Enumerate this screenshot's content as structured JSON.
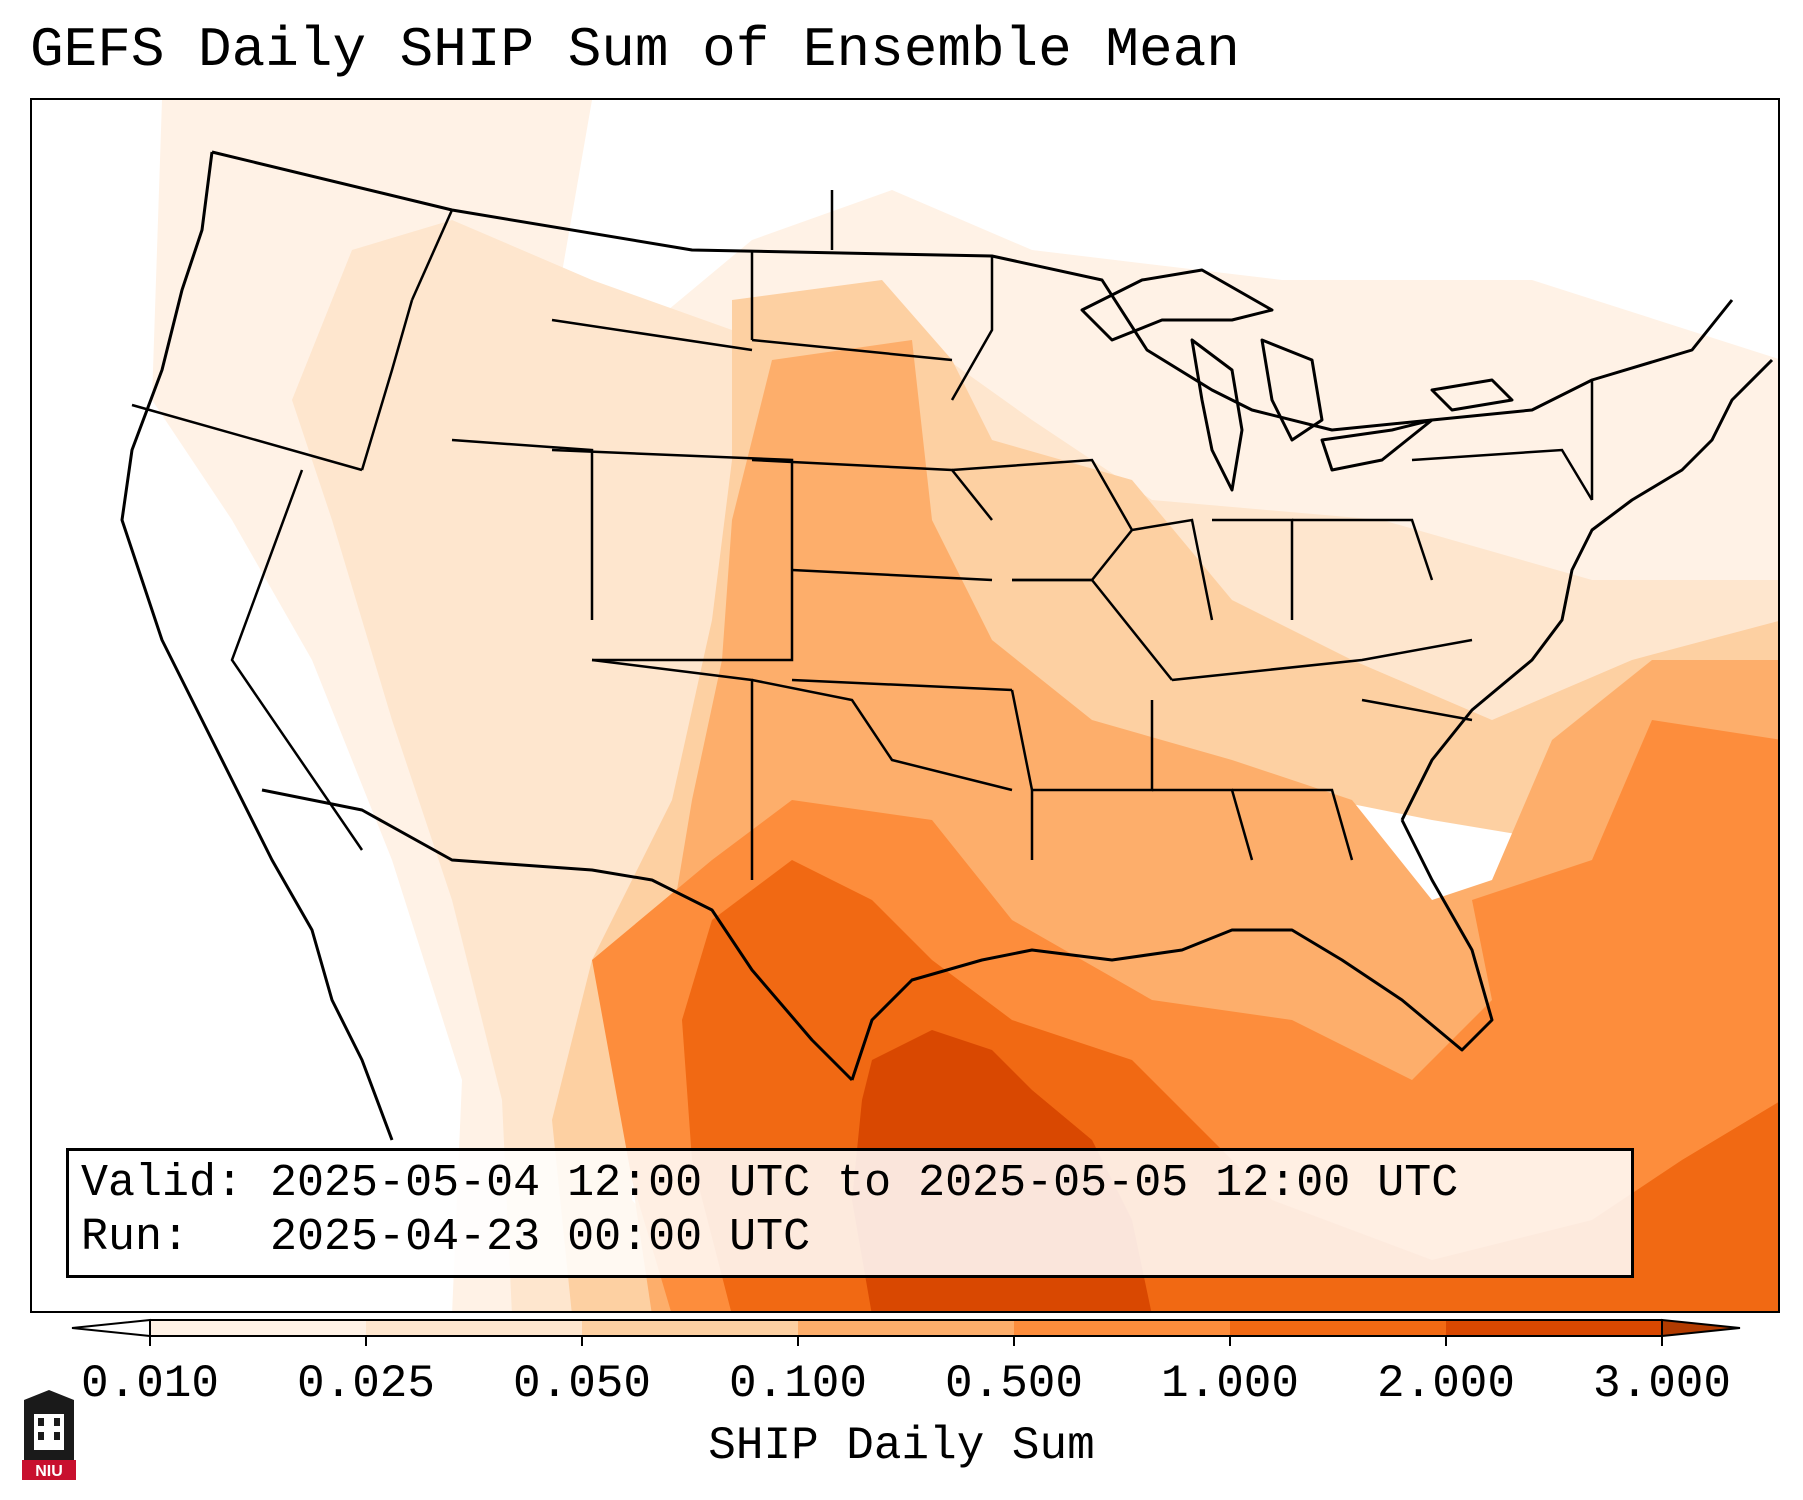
{
  "title": "GEFS Daily SHIP Sum of Ensemble Mean",
  "info": {
    "valid_label": "Valid:",
    "valid_value": "2025-05-04 12:00 UTC to 2025-05-05 12:00 UTC",
    "run_label": "Run:",
    "run_value": "2025-04-23 00:00 UTC"
  },
  "colorbar": {
    "label": "SHIP Daily Sum",
    "ticks": [
      "0.010",
      "0.025",
      "0.050",
      "0.100",
      "0.500",
      "1.000",
      "2.000",
      "3.000"
    ],
    "colors": [
      "#fff2e6",
      "#fee6ce",
      "#fdd0a2",
      "#fdae6b",
      "#fd8d3c",
      "#f16913",
      "#d94801"
    ],
    "extend": "both"
  },
  "logo": {
    "text": "NIU"
  },
  "map": {
    "region": "Contiguous United States",
    "shading_colors": {
      "very_light": "#fff2e6",
      "light": "#fee6ce",
      "light_mid": "#fdd0a2",
      "mid": "#fdae6b",
      "mid_high": "#fd8d3c",
      "high": "#f16913",
      "highest": "#d94801"
    }
  }
}
